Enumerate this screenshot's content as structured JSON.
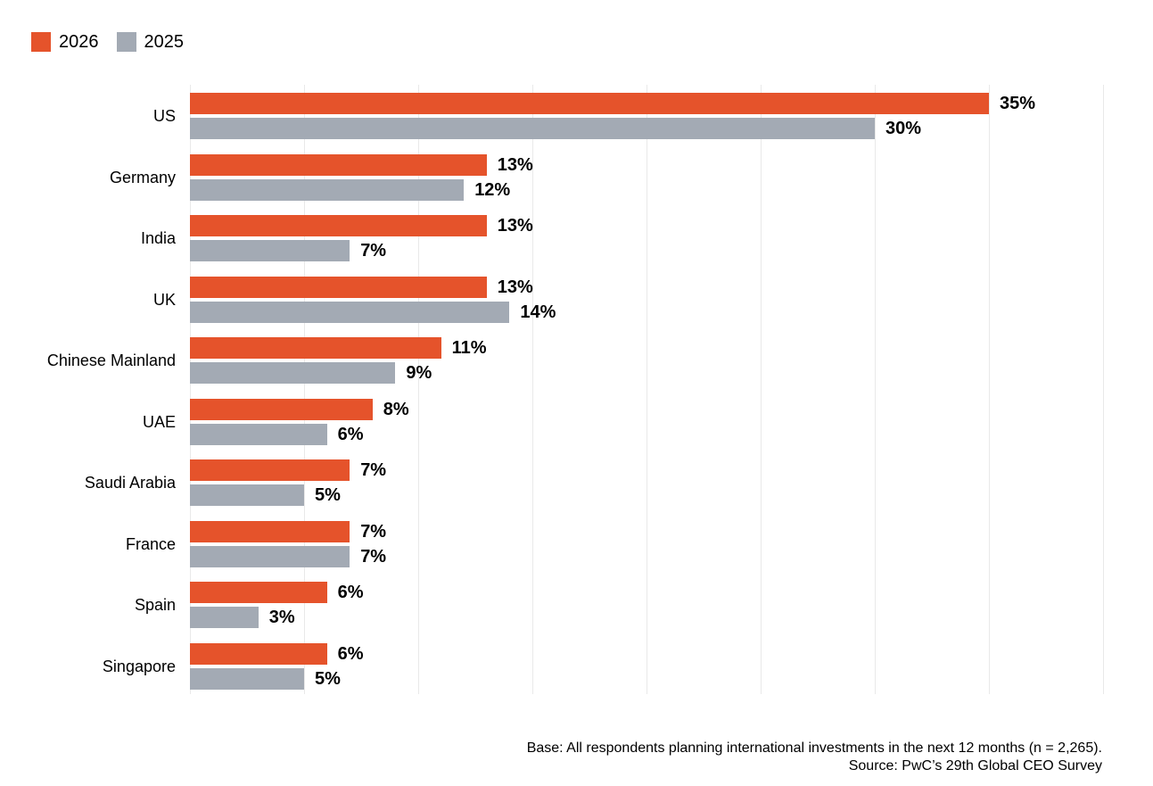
{
  "legend": [
    {
      "label": "2026",
      "color": "#E5532B"
    },
    {
      "label": "2025",
      "color": "#A3AAB4"
    }
  ],
  "chart_data": {
    "type": "bar",
    "orientation": "horizontal",
    "title": "",
    "xlabel": "",
    "ylabel": "",
    "categories": [
      "US",
      "Germany",
      "India",
      "UK",
      "Chinese Mainland",
      "UAE",
      "Saudi Arabia",
      "France",
      "Spain",
      "Singapore"
    ],
    "series": [
      {
        "name": "2026",
        "color": "#E5532B",
        "values": [
          35,
          13,
          13,
          13,
          11,
          8,
          7,
          7,
          6,
          6
        ]
      },
      {
        "name": "2025",
        "color": "#A3AAB4",
        "values": [
          30,
          12,
          7,
          14,
          9,
          6,
          5,
          7,
          3,
          5
        ]
      }
    ],
    "value_suffix": "%",
    "data_labels": true,
    "xlim": [
      0,
      40
    ],
    "gridline_step": 5,
    "grid": "vertical",
    "legend_position": "top-left"
  },
  "footer": {
    "base_note": "Base: All respondents planning international investments in the next 12 months (n = 2,265).",
    "source_note": "Source: PwC’s 29th Global CEO Survey"
  }
}
